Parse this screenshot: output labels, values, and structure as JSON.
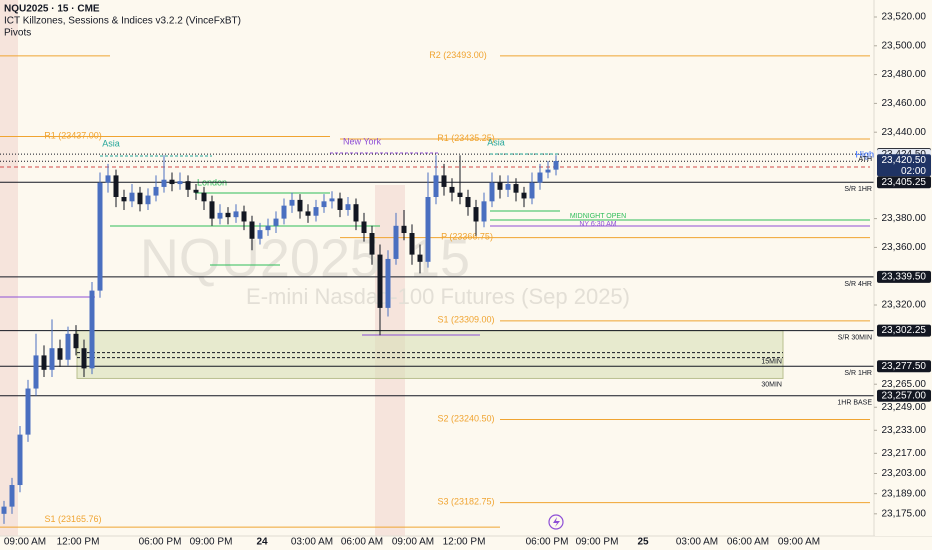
{
  "header": {
    "symbol": "NQU2025 · 15 · CME",
    "indicator": "ICT Killzones, Sessions & Indices v3.2.2 (VinceFxBT)",
    "pivots": "Pivots"
  },
  "watermark": {
    "line1": "NQU2025, 15",
    "line2": "E-mini Nasdaq-100 Futures (Sep 2025)"
  },
  "chart_data": {
    "type": "candlestick",
    "ylim": [
      23159.6,
      23531.8
    ],
    "yticks": [
      {
        "value": 23520,
        "label": "23,520.00"
      },
      {
        "value": 23500,
        "label": "23,500.00"
      },
      {
        "value": 23480,
        "label": "23,480.00"
      },
      {
        "value": 23460,
        "label": "23,460.00"
      },
      {
        "value": 23440,
        "label": "23,440.00"
      },
      {
        "value": 23380,
        "label": "23,380.00"
      },
      {
        "value": 23360,
        "label": "23,360.00"
      },
      {
        "value": 23320,
        "label": "23,320.00"
      },
      {
        "value": 23265,
        "label": "23,265.00"
      },
      {
        "value": 23249,
        "label": "23,249.00"
      },
      {
        "value": 23233,
        "label": "23,233.00"
      },
      {
        "value": 23217,
        "label": "23,217.00"
      },
      {
        "value": 23203,
        "label": "23,203.00"
      },
      {
        "value": 23189,
        "label": "23,189.00"
      },
      {
        "value": 23175,
        "label": "23,175.00"
      }
    ],
    "x_labels": [
      "09:00 AM",
      "12:00 PM",
      "06:00 PM",
      "09:00 PM",
      "24",
      "03:00 AM",
      "06:00 AM",
      "09:00 AM",
      "12:00 PM",
      "06:00 PM",
      "09:00 PM",
      "25",
      "03:00 AM",
      "06:00 AM",
      "09:00 AM"
    ],
    "up_color": "#4a6fc0",
    "down_color": "#131722",
    "pivot_color": "#f0a431",
    "zone_color": "#d9dfb8",
    "candles": [
      [
        23175,
        23184,
        23168,
        23180
      ],
      [
        23180,
        23200,
        23175,
        23195
      ],
      [
        23195,
        23236,
        23190,
        23230
      ],
      [
        23230,
        23268,
        23225,
        23262
      ],
      [
        23262,
        23300,
        23257,
        23285
      ],
      [
        23285,
        23292,
        23270,
        23275
      ],
      [
        23275,
        23310,
        23270,
        23290
      ],
      [
        23290,
        23296,
        23277,
        23282
      ],
      [
        23282,
        23305,
        23278,
        23300
      ],
      [
        23300,
        23306,
        23285,
        23290
      ],
      [
        23290,
        23296,
        23270,
        23276
      ],
      [
        23276,
        23336,
        23272,
        23330
      ],
      [
        23330,
        23412,
        23325,
        23405
      ],
      [
        23405,
        23418,
        23398,
        23410
      ],
      [
        23410,
        23414,
        23388,
        23395
      ],
      [
        23395,
        23400,
        23386,
        23392
      ],
      [
        23392,
        23404,
        23388,
        23398
      ],
      [
        23398,
        23402,
        23385,
        23390
      ],
      [
        23390,
        23401,
        23386,
        23396
      ],
      [
        23396,
        23410,
        23392,
        23402
      ],
      [
        23402,
        23424,
        23398,
        23407
      ],
      [
        23407,
        23412,
        23399,
        23404
      ],
      [
        23404,
        23412,
        23400,
        23406
      ],
      [
        23406,
        23410,
        23395,
        23400
      ],
      [
        23400,
        23404,
        23393,
        23398
      ],
      [
        23398,
        23402,
        23386,
        23392
      ],
      [
        23392,
        23396,
        23375,
        23380
      ],
      [
        23380,
        23390,
        23376,
        23384
      ],
      [
        23384,
        23388,
        23376,
        23381
      ],
      [
        23381,
        23390,
        23377,
        23385
      ],
      [
        23385,
        23389,
        23372,
        23378
      ],
      [
        23378,
        23382,
        23358,
        23366
      ],
      [
        23366,
        23377,
        23362,
        23372
      ],
      [
        23372,
        23380,
        23368,
        23375
      ],
      [
        23375,
        23385,
        23370,
        23380
      ],
      [
        23380,
        23394,
        23376,
        23389
      ],
      [
        23389,
        23398,
        23384,
        23393
      ],
      [
        23393,
        23397,
        23380,
        23385
      ],
      [
        23385,
        23390,
        23377,
        23382
      ],
      [
        23382,
        23393,
        23378,
        23388
      ],
      [
        23388,
        23397,
        23384,
        23392
      ],
      [
        23392,
        23399,
        23387,
        23394
      ],
      [
        23394,
        23398,
        23381,
        23386
      ],
      [
        23386,
        23395,
        23382,
        23390
      ],
      [
        23390,
        23394,
        23372,
        23378
      ],
      [
        23378,
        23384,
        23364,
        23370
      ],
      [
        23370,
        23375,
        23348,
        23355
      ],
      [
        23355,
        23362,
        23299,
        23318
      ],
      [
        23318,
        23358,
        23312,
        23352
      ],
      [
        23352,
        23384,
        23348,
        23375
      ],
      [
        23375,
        23386,
        23365,
        23370
      ],
      [
        23370,
        23376,
        23348,
        23355
      ],
      [
        23355,
        23362,
        23342,
        23350
      ],
      [
        23350,
        23412,
        23346,
        23395
      ],
      [
        23395,
        23424,
        23390,
        23410
      ],
      [
        23410,
        23418,
        23396,
        23402
      ],
      [
        23402,
        23408,
        23392,
        23398
      ],
      [
        23398,
        23424,
        23390,
        23395
      ],
      [
        23395,
        23400,
        23382,
        23388
      ],
      [
        23388,
        23393,
        23368,
        23378
      ],
      [
        23378,
        23398,
        23374,
        23392
      ],
      [
        23392,
        23412,
        23388,
        23405
      ],
      [
        23405,
        23410,
        23394,
        23400
      ],
      [
        23400,
        23410,
        23395,
        23404
      ],
      [
        23404,
        23408,
        23392,
        23398
      ],
      [
        23398,
        23402,
        23388,
        23394
      ],
      [
        23394,
        23412,
        23390,
        23405
      ],
      [
        23405,
        23418,
        23400,
        23412
      ],
      [
        23412,
        23420,
        23408,
        23414
      ],
      [
        23414,
        23424,
        23410,
        23420
      ]
    ],
    "pivots": [
      {
        "label": "R2 (23493.00)",
        "value": 23493
      },
      {
        "label": "R1 (23437.00)",
        "value": 23437
      },
      {
        "label": "R1 (23435.25)",
        "value": 23435.25
      },
      {
        "label": "P (23366.75)",
        "value": 23366.75
      },
      {
        "label": "S1 (23309.00)",
        "value": 23309
      },
      {
        "label": "S2 (23240.50)",
        "value": 23240.5
      },
      {
        "label": "S3 (23182.75)",
        "value": 23182.75
      },
      {
        "label": "S1 (23165.76)",
        "value": 23165.76
      }
    ],
    "levels": [
      {
        "name": "S/R 1HR",
        "value": 23405.25,
        "label": "23,405.25"
      },
      {
        "name": "S/R 4HR",
        "value": 23339.5,
        "label": "23,339.50"
      },
      {
        "name": "S/R 30MIN",
        "value": 23302.25,
        "label": "23,302.25"
      },
      {
        "name": "S/R 1HR",
        "value": 23277.5,
        "label": "23,277.50"
      },
      {
        "name": "1HR BASE",
        "value": 23257,
        "label": "23,257.00"
      }
    ],
    "zone": [
      23269,
      23302.25
    ],
    "zone_labels": [
      "15MIN",
      "30MIN"
    ],
    "high": {
      "value": 23424.75,
      "label": "23,424.75"
    },
    "session_high": {
      "name": "High",
      "value": 23424.5,
      "label": "23,424.50"
    },
    "last": {
      "value": 23420.5,
      "label": "23,420.50",
      "countdown": "02:00",
      "name": "ATH"
    },
    "sessions": [
      "Asia",
      "London",
      "New York",
      "Asia"
    ],
    "markers": [
      "MIDNIGHT OPEN",
      "NY 6:30 AM"
    ]
  }
}
